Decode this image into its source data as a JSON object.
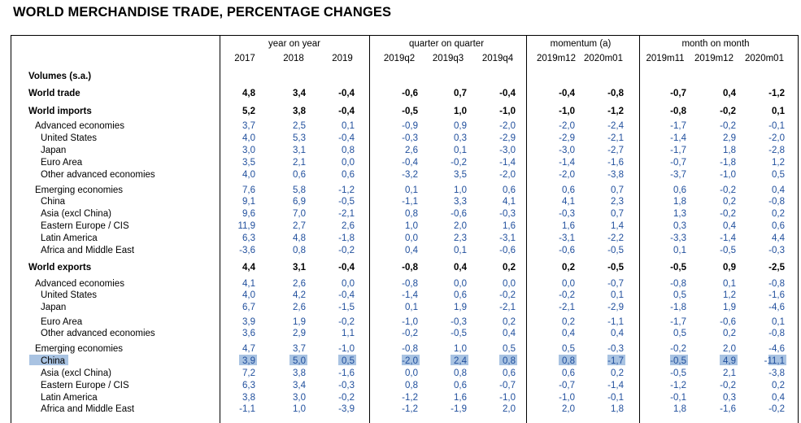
{
  "title": "WORLD MERCHANDISE TRADE, PERCENTAGE CHANGES",
  "groups": [
    "year on year",
    "quarter on quarter",
    "momentum (a)",
    "month on month"
  ],
  "columns": [
    "2017",
    "2018",
    "2019",
    "2019q2",
    "2019q3",
    "2019q4",
    "2019m12",
    "2020m01",
    "2019m11",
    "2019m12",
    "2020m01"
  ],
  "section_label": "Volumes (s.a.)",
  "rows": [
    {
      "label": "World trade",
      "values": [
        "4,8",
        "3,4",
        "-0,4",
        "-0,6",
        "0,7",
        "-0,4",
        "-0,4",
        "-0,8",
        "-0,7",
        "0,4",
        "-1,2"
      ]
    },
    {
      "label": "World imports",
      "values": [
        "5,2",
        "3,8",
        "-0,4",
        "-0,5",
        "1,0",
        "-1,0",
        "-1,0",
        "-1,2",
        "-0,8",
        "-0,2",
        "0,1"
      ]
    },
    {
      "label": "Advanced economies",
      "values": [
        "3,7",
        "2,5",
        "0,1",
        "-0,9",
        "0,9",
        "-2,0",
        "-2,0",
        "-2,4",
        "-1,7",
        "-0,2",
        "-0,1"
      ]
    },
    {
      "label": "United States",
      "values": [
        "4,0",
        "5,3",
        "-0,4",
        "-0,3",
        "0,3",
        "-2,9",
        "-2,9",
        "-2,1",
        "-1,4",
        "2,9",
        "-2,0"
      ]
    },
    {
      "label": "Japan",
      "values": [
        "3,0",
        "3,1",
        "0,8",
        "2,6",
        "0,1",
        "-3,0",
        "-3,0",
        "-2,7",
        "-1,7",
        "1,8",
        "-2,8"
      ]
    },
    {
      "label": "Euro Area",
      "values": [
        "3,5",
        "2,1",
        "0,0",
        "-0,4",
        "-0,2",
        "-1,4",
        "-1,4",
        "-1,6",
        "-0,7",
        "-1,8",
        "1,2"
      ]
    },
    {
      "label": "Other advanced economies",
      "values": [
        "4,0",
        "0,6",
        "0,6",
        "-3,2",
        "3,5",
        "-2,0",
        "-2,0",
        "-3,8",
        "-3,7",
        "-1,0",
        "0,5"
      ]
    },
    {
      "label": "Emerging economies",
      "values": [
        "7,6",
        "5,8",
        "-1,2",
        "0,1",
        "1,0",
        "0,6",
        "0,6",
        "0,7",
        "0,6",
        "-0,2",
        "0,4"
      ]
    },
    {
      "label": "China",
      "values": [
        "9,1",
        "6,9",
        "-0,5",
        "-1,1",
        "3,3",
        "4,1",
        "4,1",
        "2,3",
        "1,8",
        "0,2",
        "-0,8"
      ]
    },
    {
      "label": "Asia (excl China)",
      "values": [
        "9,6",
        "7,0",
        "-2,1",
        "0,8",
        "-0,6",
        "-0,3",
        "-0,3",
        "0,7",
        "1,3",
        "-0,2",
        "0,2"
      ]
    },
    {
      "label": "Eastern Europe / CIS",
      "values": [
        "11,9",
        "2,7",
        "2,6",
        "1,0",
        "2,0",
        "1,6",
        "1,6",
        "1,4",
        "0,3",
        "0,4",
        "0,6"
      ]
    },
    {
      "label": "Latin America",
      "values": [
        "6,3",
        "4,8",
        "-1,8",
        "0,0",
        "2,3",
        "-3,1",
        "-3,1",
        "-2,2",
        "-3,3",
        "-1,4",
        "4,4"
      ]
    },
    {
      "label": "Africa and Middle East",
      "values": [
        "-3,6",
        "0,8",
        "-0,2",
        "0,4",
        "0,1",
        "-0,6",
        "-0,6",
        "-0,5",
        "0,1",
        "-0,5",
        "-0,3"
      ]
    },
    {
      "label": "World exports",
      "values": [
        "4,4",
        "3,1",
        "-0,4",
        "-0,8",
        "0,4",
        "0,2",
        "0,2",
        "-0,5",
        "-0,5",
        "0,9",
        "-2,5"
      ]
    },
    {
      "label": "Advanced economies",
      "values": [
        "4,1",
        "2,6",
        "0,0",
        "-0,8",
        "0,0",
        "0,0",
        "0,0",
        "-0,7",
        "-0,8",
        "0,1",
        "-0,8"
      ]
    },
    {
      "label": "United States",
      "values": [
        "4,0",
        "4,2",
        "-0,4",
        "-1,4",
        "0,6",
        "-0,2",
        "-0,2",
        "0,1",
        "0,5",
        "1,2",
        "-1,6"
      ]
    },
    {
      "label": "Japan",
      "values": [
        "6,7",
        "2,6",
        "-1,5",
        "0,1",
        "1,9",
        "-2,1",
        "-2,1",
        "-2,9",
        "-1,8",
        "1,9",
        "-4,6"
      ]
    },
    {
      "label": "Euro Area",
      "values": [
        "3,9",
        "1,9",
        "-0,2",
        "-1,0",
        "-0,3",
        "0,2",
        "0,2",
        "-1,1",
        "-1,7",
        "-0,6",
        "0,1"
      ]
    },
    {
      "label": "Other advanced economies",
      "values": [
        "3,6",
        "2,9",
        "1,1",
        "-0,2",
        "-0,5",
        "0,4",
        "0,4",
        "0,4",
        "0,5",
        "0,2",
        "-0,8"
      ]
    },
    {
      "label": "Emerging economies",
      "values": [
        "4,7",
        "3,7",
        "-1,0",
        "-0,8",
        "1,0",
        "0,5",
        "0,5",
        "-0,3",
        "-0,2",
        "2,0",
        "-4,6"
      ]
    },
    {
      "label": "China",
      "values": [
        "3,9",
        "5,0",
        "0,5",
        "-2,0",
        "2,4",
        "0,8",
        "0,8",
        "-1,7",
        "-0,5",
        "4,9",
        "-11,1"
      ]
    },
    {
      "label": "Asia (excl China)",
      "values": [
        "7,2",
        "3,8",
        "-1,6",
        "0,0",
        "0,8",
        "0,6",
        "0,6",
        "0,2",
        "-0,5",
        "2,1",
        "-3,8"
      ]
    },
    {
      "label": "Eastern Europe / CIS",
      "values": [
        "6,3",
        "3,4",
        "-0,3",
        "0,8",
        "0,6",
        "-0,7",
        "-0,7",
        "-1,4",
        "-1,2",
        "-0,2",
        "0,2"
      ]
    },
    {
      "label": "Latin America",
      "values": [
        "3,8",
        "3,0",
        "-0,2",
        "-1,2",
        "1,6",
        "-1,0",
        "-1,0",
        "-0,1",
        "-0,1",
        "0,3",
        "0,4"
      ]
    },
    {
      "label": "Africa and Middle East",
      "values": [
        "-1,1",
        "1,0",
        "-3,9",
        "-1,2",
        "-1,9",
        "2,0",
        "2,0",
        "1,8",
        "1,8",
        "-1,6",
        "-0,2"
      ]
    }
  ],
  "highlight_color": "#a9c3e2",
  "value_color": "#1f4e9c"
}
